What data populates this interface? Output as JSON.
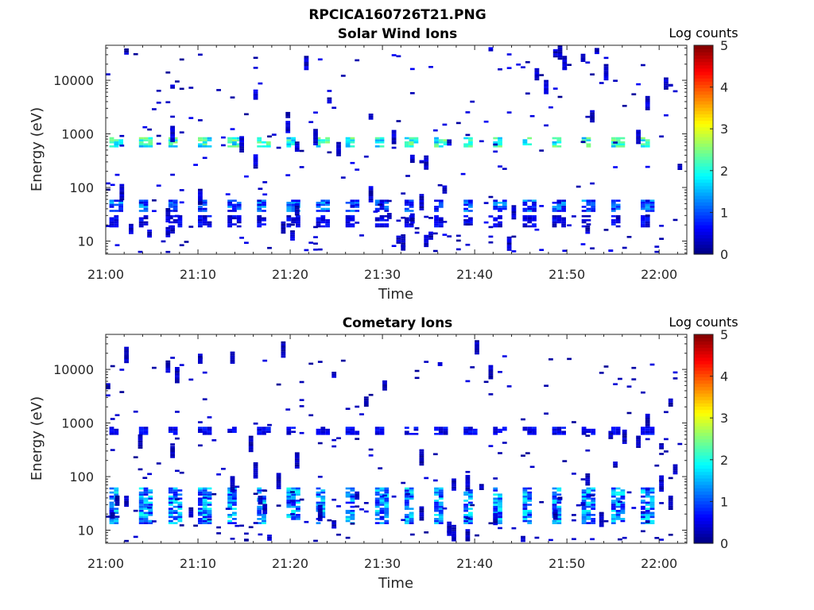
{
  "figure_title": "RPCICA160726T21.PNG",
  "colors": {
    "colormap": "jet",
    "axis": "#262626",
    "background": "#ffffff",
    "blank_bin": "#ffffff"
  },
  "chart_data": [
    {
      "type": "heatmap",
      "title": "Solar Wind Ions",
      "xlabel": "Time",
      "ylabel": "Energy (eV)",
      "x_ticks": [
        "21:00",
        "21:10",
        "21:20",
        "21:30",
        "21:40",
        "21:50",
        "22:00"
      ],
      "x_tick_minutes": [
        0,
        10,
        20,
        30,
        40,
        50,
        60
      ],
      "xlim_minutes_after_21_00": [
        0,
        63
      ],
      "y_scale": "log",
      "y_ticks": [
        "10",
        "100",
        "1000",
        "10000"
      ],
      "y_tick_values": [
        10,
        100,
        1000,
        10000
      ],
      "ylim": [
        5.7,
        45000
      ],
      "colorbar": {
        "title": "Log counts",
        "ticks": [
          "0",
          "1",
          "2",
          "3",
          "4",
          "5"
        ],
        "range": [
          0,
          5
        ],
        "colormap": "jet"
      },
      "sweep_period_minutes": 3.2,
      "bin_width_minutes": 0.5,
      "bands": [
        {
          "energy_range_eV": [
            560,
            850
          ],
          "log_counts_range": [
            1.4,
            2.6
          ],
          "description": "solar wind proton peak, repeating each sweep"
        },
        {
          "energy_range_eV": [
            35,
            55
          ],
          "log_counts_range": [
            0.4,
            1.6
          ],
          "description": "low-energy band, repeating each sweep"
        },
        {
          "energy_range_eV": [
            18,
            30
          ],
          "log_counts_range": [
            0.2,
            0.8
          ],
          "description": "sparse low-energy band"
        }
      ],
      "scattered_counts": {
        "energy_range_eV": [
          6,
          35000
        ],
        "log_counts_range": [
          0.1,
          0.6
        ]
      }
    },
    {
      "type": "heatmap",
      "title": "Cometary Ions",
      "xlabel": "Time",
      "ylabel": "Energy (eV)",
      "x_ticks": [
        "21:00",
        "21:10",
        "21:20",
        "21:30",
        "21:40",
        "21:50",
        "22:00"
      ],
      "x_tick_minutes": [
        0,
        10,
        20,
        30,
        40,
        50,
        60
      ],
      "xlim_minutes_after_21_00": [
        0,
        63
      ],
      "y_scale": "log",
      "y_ticks": [
        "10",
        "100",
        "1000",
        "10000"
      ],
      "y_tick_values": [
        10,
        100,
        1000,
        10000
      ],
      "ylim": [
        5.7,
        45000
      ],
      "colorbar": {
        "title": "Log counts",
        "ticks": [
          "0",
          "1",
          "2",
          "3",
          "4",
          "5"
        ],
        "range": [
          0,
          5
        ],
        "colormap": "jet"
      },
      "sweep_period_minutes": 3.2,
      "bin_width_minutes": 0.5,
      "bands": [
        {
          "energy_range_eV": [
            13,
            60
          ],
          "log_counts_range": [
            0.5,
            2.0
          ],
          "description": "cometary ion signal, repeating each sweep"
        },
        {
          "energy_range_eV": [
            600,
            800
          ],
          "log_counts_range": [
            0.3,
            0.8
          ],
          "description": "weak band near 700 eV"
        }
      ],
      "scattered_counts": {
        "energy_range_eV": [
          6,
          20000
        ],
        "log_counts_range": [
          0.1,
          0.5
        ]
      }
    }
  ]
}
